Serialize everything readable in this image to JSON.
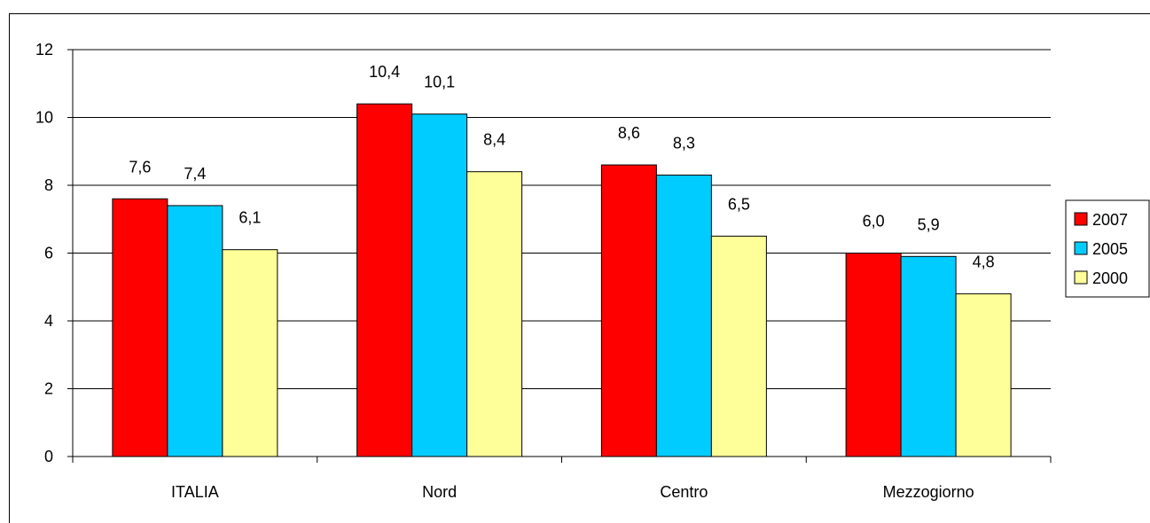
{
  "chart_data": {
    "type": "bar",
    "categories": [
      "ITALIA",
      "Nord",
      "Centro",
      "Mezzogiorno"
    ],
    "series": [
      {
        "name": "2007",
        "values": [
          7.6,
          10.4,
          8.6,
          6.0
        ],
        "labels": [
          "7,6",
          "10,4",
          "8,6",
          "6,0"
        ],
        "color": "#ff0000"
      },
      {
        "name": "2005",
        "values": [
          7.4,
          10.1,
          8.3,
          5.9
        ],
        "labels": [
          "7,4",
          "10,1",
          "8,3",
          "5,9"
        ],
        "color": "#00ccff"
      },
      {
        "name": "2000",
        "values": [
          6.1,
          8.4,
          6.5,
          4.8
        ],
        "labels": [
          "6,1",
          "8,4",
          "6,5",
          "4,8"
        ],
        "color": "#ffff99"
      }
    ],
    "yticks": [
      "0",
      "2",
      "4",
      "6",
      "8",
      "10",
      "12"
    ],
    "ylim": [
      0,
      12
    ],
    "grid": true,
    "legend": "right"
  }
}
